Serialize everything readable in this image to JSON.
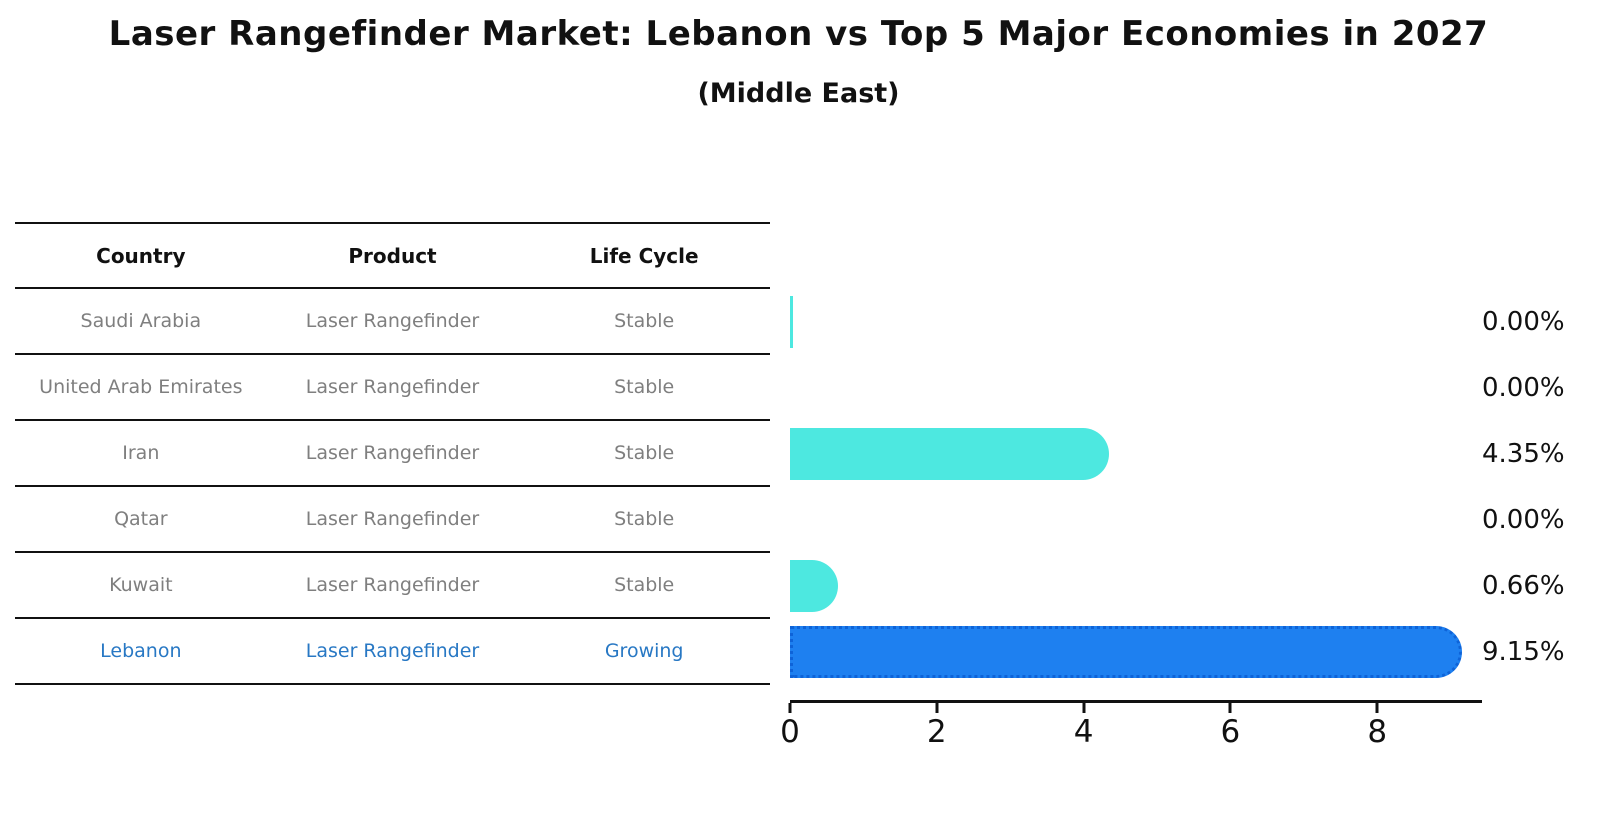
{
  "title": "Laser Rangefinder Market: Lebanon vs Top 5 Major Economies in 2027",
  "subtitle": "(Middle East)",
  "table": {
    "headers": [
      "Country",
      "Product",
      "Life Cycle"
    ],
    "rows": [
      {
        "country": "Saudi Arabia",
        "product": "Laser Rangefinder",
        "life_cycle": "Stable",
        "highlight": false
      },
      {
        "country": "United Arab Emirates",
        "product": "Laser Rangefinder",
        "life_cycle": "Stable",
        "highlight": false
      },
      {
        "country": "Iran",
        "product": "Laser Rangefinder",
        "life_cycle": "Stable",
        "highlight": false
      },
      {
        "country": "Qatar",
        "product": "Laser Rangefinder",
        "life_cycle": "Stable",
        "highlight": false
      },
      {
        "country": "Kuwait",
        "product": "Laser Rangefinder",
        "life_cycle": "Stable",
        "highlight": false
      },
      {
        "country": "Lebanon",
        "product": "Laser Rangefinder",
        "life_cycle": "Growing",
        "highlight": true
      }
    ]
  },
  "chart_data": {
    "type": "bar",
    "orientation": "horizontal",
    "title": "Laser Rangefinder Market: Lebanon vs Top 5 Major Economies in 2027",
    "subtitle": "(Middle East)",
    "categories": [
      "Saudi Arabia",
      "United Arab Emirates",
      "Iran",
      "Qatar",
      "Kuwait",
      "Lebanon"
    ],
    "values": [
      0.0,
      0.0,
      4.35,
      0.0,
      0.66,
      9.15
    ],
    "value_labels": [
      "0.00%",
      "0.00%",
      "4.35%",
      "0.00%",
      "0.66%",
      "9.15%"
    ],
    "x_ticks": [
      0,
      2,
      4,
      6,
      8
    ],
    "xlim": [
      0,
      9.4
    ],
    "grid": false,
    "legend": false,
    "bar_color": "#4DE8E0",
    "highlight_bar_color": "#1E80F0",
    "highlight_border_color": "#0E63D8",
    "highlight_text_color": "#2878C4",
    "highlight_index": 5,
    "zero_sliver_indices": [
      0
    ]
  },
  "colors": {
    "background": "#FFFFFF",
    "text": "#111111",
    "muted_text": "#7F7F7F",
    "line": "#111111"
  }
}
